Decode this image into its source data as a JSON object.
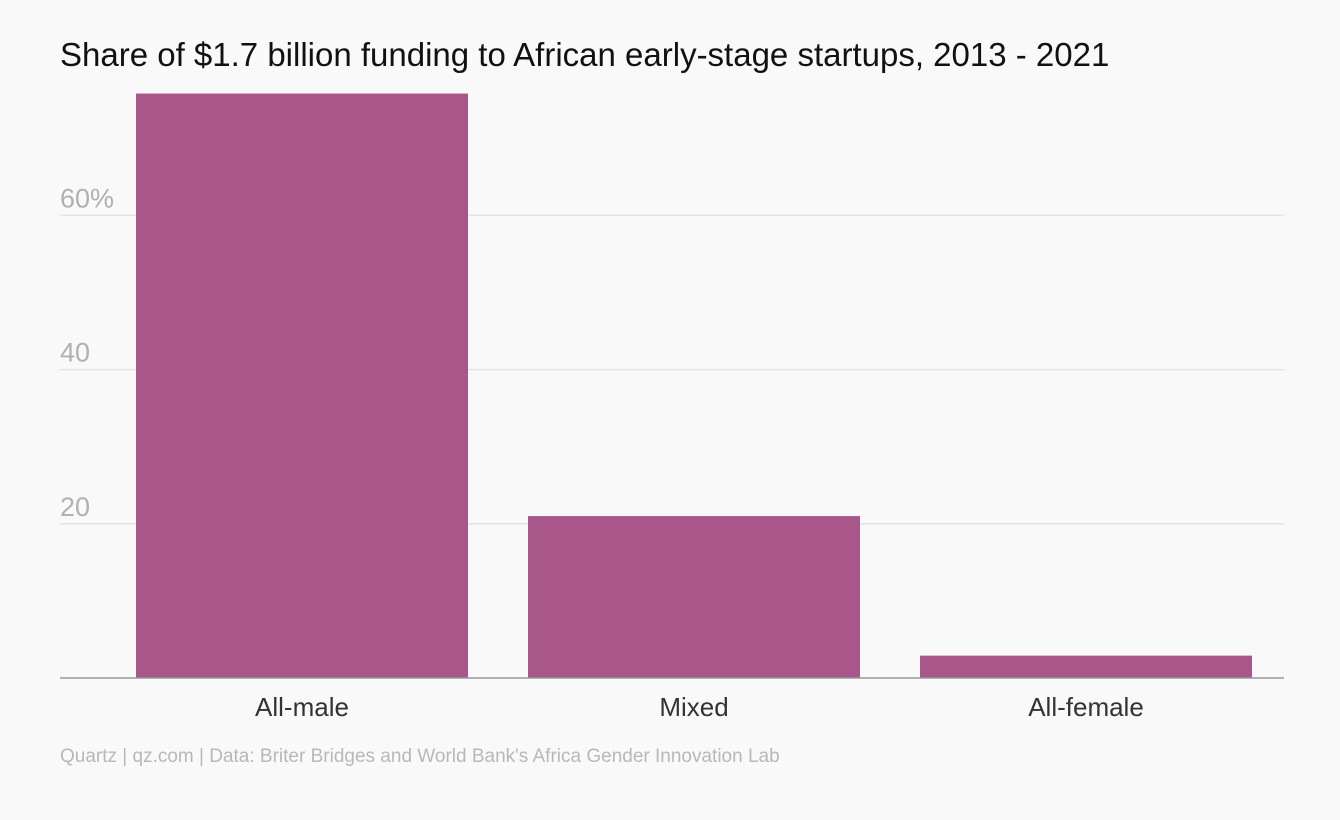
{
  "chart_data": {
    "type": "bar",
    "title": "Share of $1.7 billion funding to African early-stage startups, 2013 - 2021",
    "categories": [
      "All-male",
      "Mixed",
      "All-female"
    ],
    "values": [
      75.8,
      21.0,
      2.9
    ],
    "ylim": [
      0,
      76
    ],
    "yticks": [
      20,
      40,
      60
    ],
    "ytick_labels": [
      "20",
      "40",
      "60%"
    ],
    "grid": true,
    "legend": "none",
    "bar_color": "#a9578a",
    "source": "Quartz | qz.com | Data: Briter Bridges and World Bank's Africa Gender Innovation Lab"
  }
}
